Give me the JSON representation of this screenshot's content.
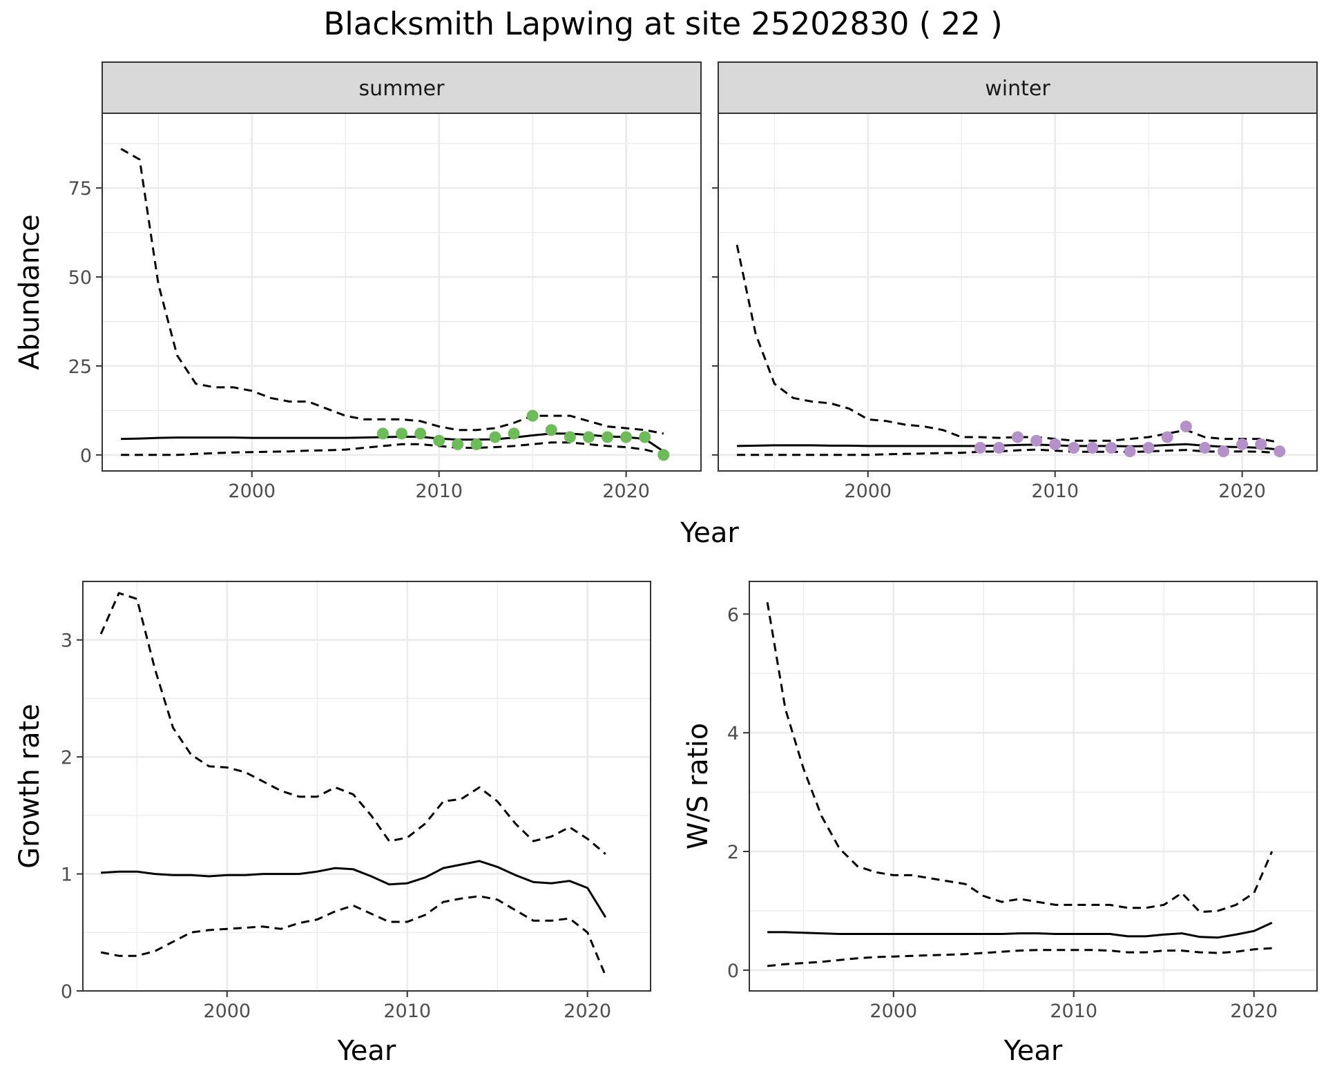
{
  "title": "Blacksmith Lapwing at site 25202830 ( 22 )",
  "colors": {
    "summer": "#6dbb59",
    "winter": "#b491c8",
    "line": "#000000",
    "grid": "#ebebeb",
    "strip": "#d9d9d9"
  },
  "chart_data": [
    {
      "type": "line",
      "facet": "summer",
      "xlabel": "Year",
      "ylabel": "Abundance",
      "xlim": [
        1992,
        2024
      ],
      "ylim": [
        -4.5,
        96
      ],
      "xticks": [
        "2000",
        "2010",
        "2020"
      ],
      "xtick_values": [
        2000,
        2010,
        2020
      ],
      "yticks": [
        "0",
        "25",
        "50",
        "75"
      ],
      "ytick_values": [
        0,
        25,
        50,
        75
      ],
      "x": [
        1993,
        1994,
        1995,
        1996,
        1997,
        1998,
        1999,
        2000,
        2001,
        2002,
        2003,
        2004,
        2005,
        2006,
        2007,
        2008,
        2009,
        2010,
        2011,
        2012,
        2013,
        2014,
        2015,
        2016,
        2017,
        2018,
        2019,
        2020,
        2021,
        2022
      ],
      "series": [
        {
          "role": "mean",
          "style": "solid",
          "values": [
            4.5,
            4.6,
            4.8,
            4.9,
            4.9,
            4.9,
            4.9,
            4.8,
            4.8,
            4.8,
            4.8,
            4.8,
            4.8,
            4.9,
            5.0,
            5.1,
            5.1,
            4.6,
            4.3,
            4.3,
            4.4,
            4.9,
            5.5,
            6.0,
            6.0,
            5.6,
            5.2,
            5.0,
            4.5,
            1.0
          ]
        },
        {
          "role": "upper",
          "style": "dashed",
          "values": [
            86,
            83,
            48,
            28,
            20,
            19,
            19,
            18,
            16,
            15,
            15,
            13,
            11,
            10,
            10,
            10,
            9.5,
            8,
            7,
            7,
            7.5,
            9,
            11,
            11,
            11,
            9.5,
            8,
            7.5,
            7,
            6
          ]
        },
        {
          "role": "lower",
          "style": "dashed",
          "values": [
            0,
            0,
            0,
            0,
            0.3,
            0.5,
            0.7,
            0.8,
            0.9,
            1.0,
            1.2,
            1.3,
            1.5,
            2.0,
            2.5,
            3.0,
            3.0,
            2.5,
            2.0,
            2.0,
            2.2,
            2.5,
            3.0,
            3.5,
            3.5,
            3.0,
            2.5,
            2.2,
            1.5,
            0.2
          ]
        }
      ],
      "points": {
        "x": [
          2007,
          2008,
          2009,
          2010,
          2011,
          2012,
          2013,
          2014,
          2015,
          2016,
          2017,
          2018,
          2019,
          2020,
          2021,
          2022
        ],
        "y": [
          6,
          6,
          6,
          4,
          3,
          3,
          5,
          6,
          11,
          7,
          5,
          5,
          5,
          5,
          5,
          0
        ]
      }
    },
    {
      "type": "line",
      "facet": "winter",
      "xlabel": "Year",
      "ylabel": "Abundance",
      "xlim": [
        1992,
        2024
      ],
      "ylim": [
        -4.5,
        96
      ],
      "xticks": [
        "2000",
        "2010",
        "2020"
      ],
      "xtick_values": [
        2000,
        2010,
        2020
      ],
      "x": [
        1993,
        1994,
        1995,
        1996,
        1997,
        1998,
        1999,
        2000,
        2001,
        2002,
        2003,
        2004,
        2005,
        2006,
        2007,
        2008,
        2009,
        2010,
        2011,
        2012,
        2013,
        2014,
        2015,
        2016,
        2017,
        2018,
        2019,
        2020,
        2021,
        2022
      ],
      "series": [
        {
          "role": "mean",
          "style": "solid",
          "values": [
            2.5,
            2.6,
            2.7,
            2.7,
            2.7,
            2.6,
            2.6,
            2.5,
            2.5,
            2.5,
            2.5,
            2.5,
            2.5,
            2.5,
            2.6,
            2.8,
            2.9,
            2.7,
            2.5,
            2.5,
            2.5,
            2.4,
            2.5,
            2.8,
            3.0,
            2.6,
            2.3,
            2.2,
            2.0,
            1.5
          ]
        },
        {
          "role": "upper",
          "style": "dashed",
          "values": [
            59,
            34,
            20,
            16,
            15,
            14.5,
            13,
            10,
            9.5,
            8.5,
            8,
            7,
            5,
            5,
            4.8,
            5,
            5,
            4.5,
            4,
            4,
            4,
            4.5,
            5,
            6,
            7,
            5,
            4.5,
            4.5,
            4.5,
            3.5
          ]
        },
        {
          "role": "lower",
          "style": "dashed",
          "values": [
            0,
            0,
            0,
            0,
            0,
            0,
            0,
            0,
            0.2,
            0.3,
            0.4,
            0.5,
            0.6,
            0.9,
            1.0,
            1.3,
            1.5,
            1.2,
            0.9,
            0.9,
            0.9,
            0.8,
            1.0,
            1.2,
            1.4,
            1.0,
            0.9,
            1.0,
            0.9,
            0.5
          ]
        }
      ],
      "points": {
        "x": [
          2006,
          2007,
          2008,
          2009,
          2010,
          2011,
          2012,
          2013,
          2014,
          2015,
          2016,
          2017,
          2018,
          2019,
          2020,
          2021,
          2022
        ],
        "y": [
          2,
          2,
          5,
          4,
          3,
          2,
          2,
          2,
          1,
          2,
          5,
          8,
          2,
          1,
          3,
          3,
          1
        ]
      }
    },
    {
      "type": "line",
      "xlabel": "Year",
      "ylabel": "Growth rate",
      "xlim": [
        1992,
        2023.5
      ],
      "ylim": [
        0,
        3.5
      ],
      "xticks": [
        "2000",
        "2010",
        "2020"
      ],
      "xtick_values": [
        2000,
        2010,
        2020
      ],
      "yticks": [
        "0",
        "1",
        "2",
        "3"
      ],
      "ytick_values": [
        0,
        1,
        2,
        3
      ],
      "x": [
        1993,
        1994,
        1995,
        1996,
        1997,
        1998,
        1999,
        2000,
        2001,
        2002,
        2003,
        2004,
        2005,
        2006,
        2007,
        2008,
        2009,
        2010,
        2011,
        2012,
        2013,
        2014,
        2015,
        2016,
        2017,
        2018,
        2019,
        2020,
        2021
      ],
      "series": [
        {
          "role": "mean",
          "style": "solid",
          "values": [
            1.01,
            1.02,
            1.02,
            1.0,
            0.99,
            0.99,
            0.98,
            0.99,
            0.99,
            1.0,
            1.0,
            1.0,
            1.02,
            1.05,
            1.04,
            0.98,
            0.91,
            0.92,
            0.97,
            1.05,
            1.08,
            1.11,
            1.06,
            0.99,
            0.93,
            0.92,
            0.94,
            0.88,
            0.63
          ]
        },
        {
          "role": "upper",
          "style": "dashed",
          "values": [
            3.05,
            3.4,
            3.35,
            2.75,
            2.25,
            2.02,
            1.92,
            1.91,
            1.87,
            1.79,
            1.71,
            1.66,
            1.66,
            1.74,
            1.68,
            1.5,
            1.28,
            1.31,
            1.43,
            1.62,
            1.64,
            1.74,
            1.62,
            1.43,
            1.28,
            1.32,
            1.4,
            1.3,
            1.17
          ]
        },
        {
          "role": "lower",
          "style": "dashed",
          "values": [
            0.33,
            0.3,
            0.3,
            0.34,
            0.42,
            0.5,
            0.52,
            0.53,
            0.54,
            0.55,
            0.53,
            0.58,
            0.61,
            0.68,
            0.73,
            0.66,
            0.59,
            0.59,
            0.65,
            0.76,
            0.79,
            0.81,
            0.78,
            0.69,
            0.6,
            0.6,
            0.62,
            0.5,
            0.13
          ]
        }
      ]
    },
    {
      "type": "line",
      "xlabel": "Year",
      "ylabel": "W/S ratio",
      "xlim": [
        1992,
        2023.5
      ],
      "ylim": [
        -0.35,
        6.55
      ],
      "xticks": [
        "2000",
        "2010",
        "2020"
      ],
      "xtick_values": [
        2000,
        2010,
        2020
      ],
      "yticks": [
        "0",
        "2",
        "4",
        "6"
      ],
      "ytick_values": [
        0,
        2,
        4,
        6
      ],
      "x": [
        1993,
        1994,
        1995,
        1996,
        1997,
        1998,
        1999,
        2000,
        2001,
        2002,
        2003,
        2004,
        2005,
        2006,
        2007,
        2008,
        2009,
        2010,
        2011,
        2012,
        2013,
        2014,
        2015,
        2016,
        2017,
        2018,
        2019,
        2020,
        2021
      ],
      "series": [
        {
          "role": "mean",
          "style": "solid",
          "values": [
            0.64,
            0.64,
            0.63,
            0.62,
            0.61,
            0.61,
            0.61,
            0.61,
            0.61,
            0.61,
            0.61,
            0.61,
            0.61,
            0.61,
            0.62,
            0.62,
            0.61,
            0.61,
            0.61,
            0.61,
            0.57,
            0.57,
            0.6,
            0.62,
            0.56,
            0.55,
            0.6,
            0.66,
            0.8
          ]
        },
        {
          "role": "upper",
          "style": "dashed",
          "values": [
            6.2,
            4.4,
            3.4,
            2.6,
            2.05,
            1.75,
            1.65,
            1.6,
            1.6,
            1.55,
            1.5,
            1.45,
            1.25,
            1.15,
            1.2,
            1.15,
            1.1,
            1.1,
            1.1,
            1.1,
            1.05,
            1.05,
            1.1,
            1.3,
            0.98,
            1.0,
            1.1,
            1.3,
            2.0
          ]
        },
        {
          "role": "lower",
          "style": "dashed",
          "values": [
            0.07,
            0.1,
            0.12,
            0.14,
            0.17,
            0.2,
            0.22,
            0.23,
            0.24,
            0.25,
            0.26,
            0.27,
            0.29,
            0.31,
            0.33,
            0.34,
            0.34,
            0.34,
            0.34,
            0.33,
            0.3,
            0.3,
            0.33,
            0.33,
            0.3,
            0.29,
            0.31,
            0.35,
            0.37
          ]
        }
      ]
    }
  ]
}
